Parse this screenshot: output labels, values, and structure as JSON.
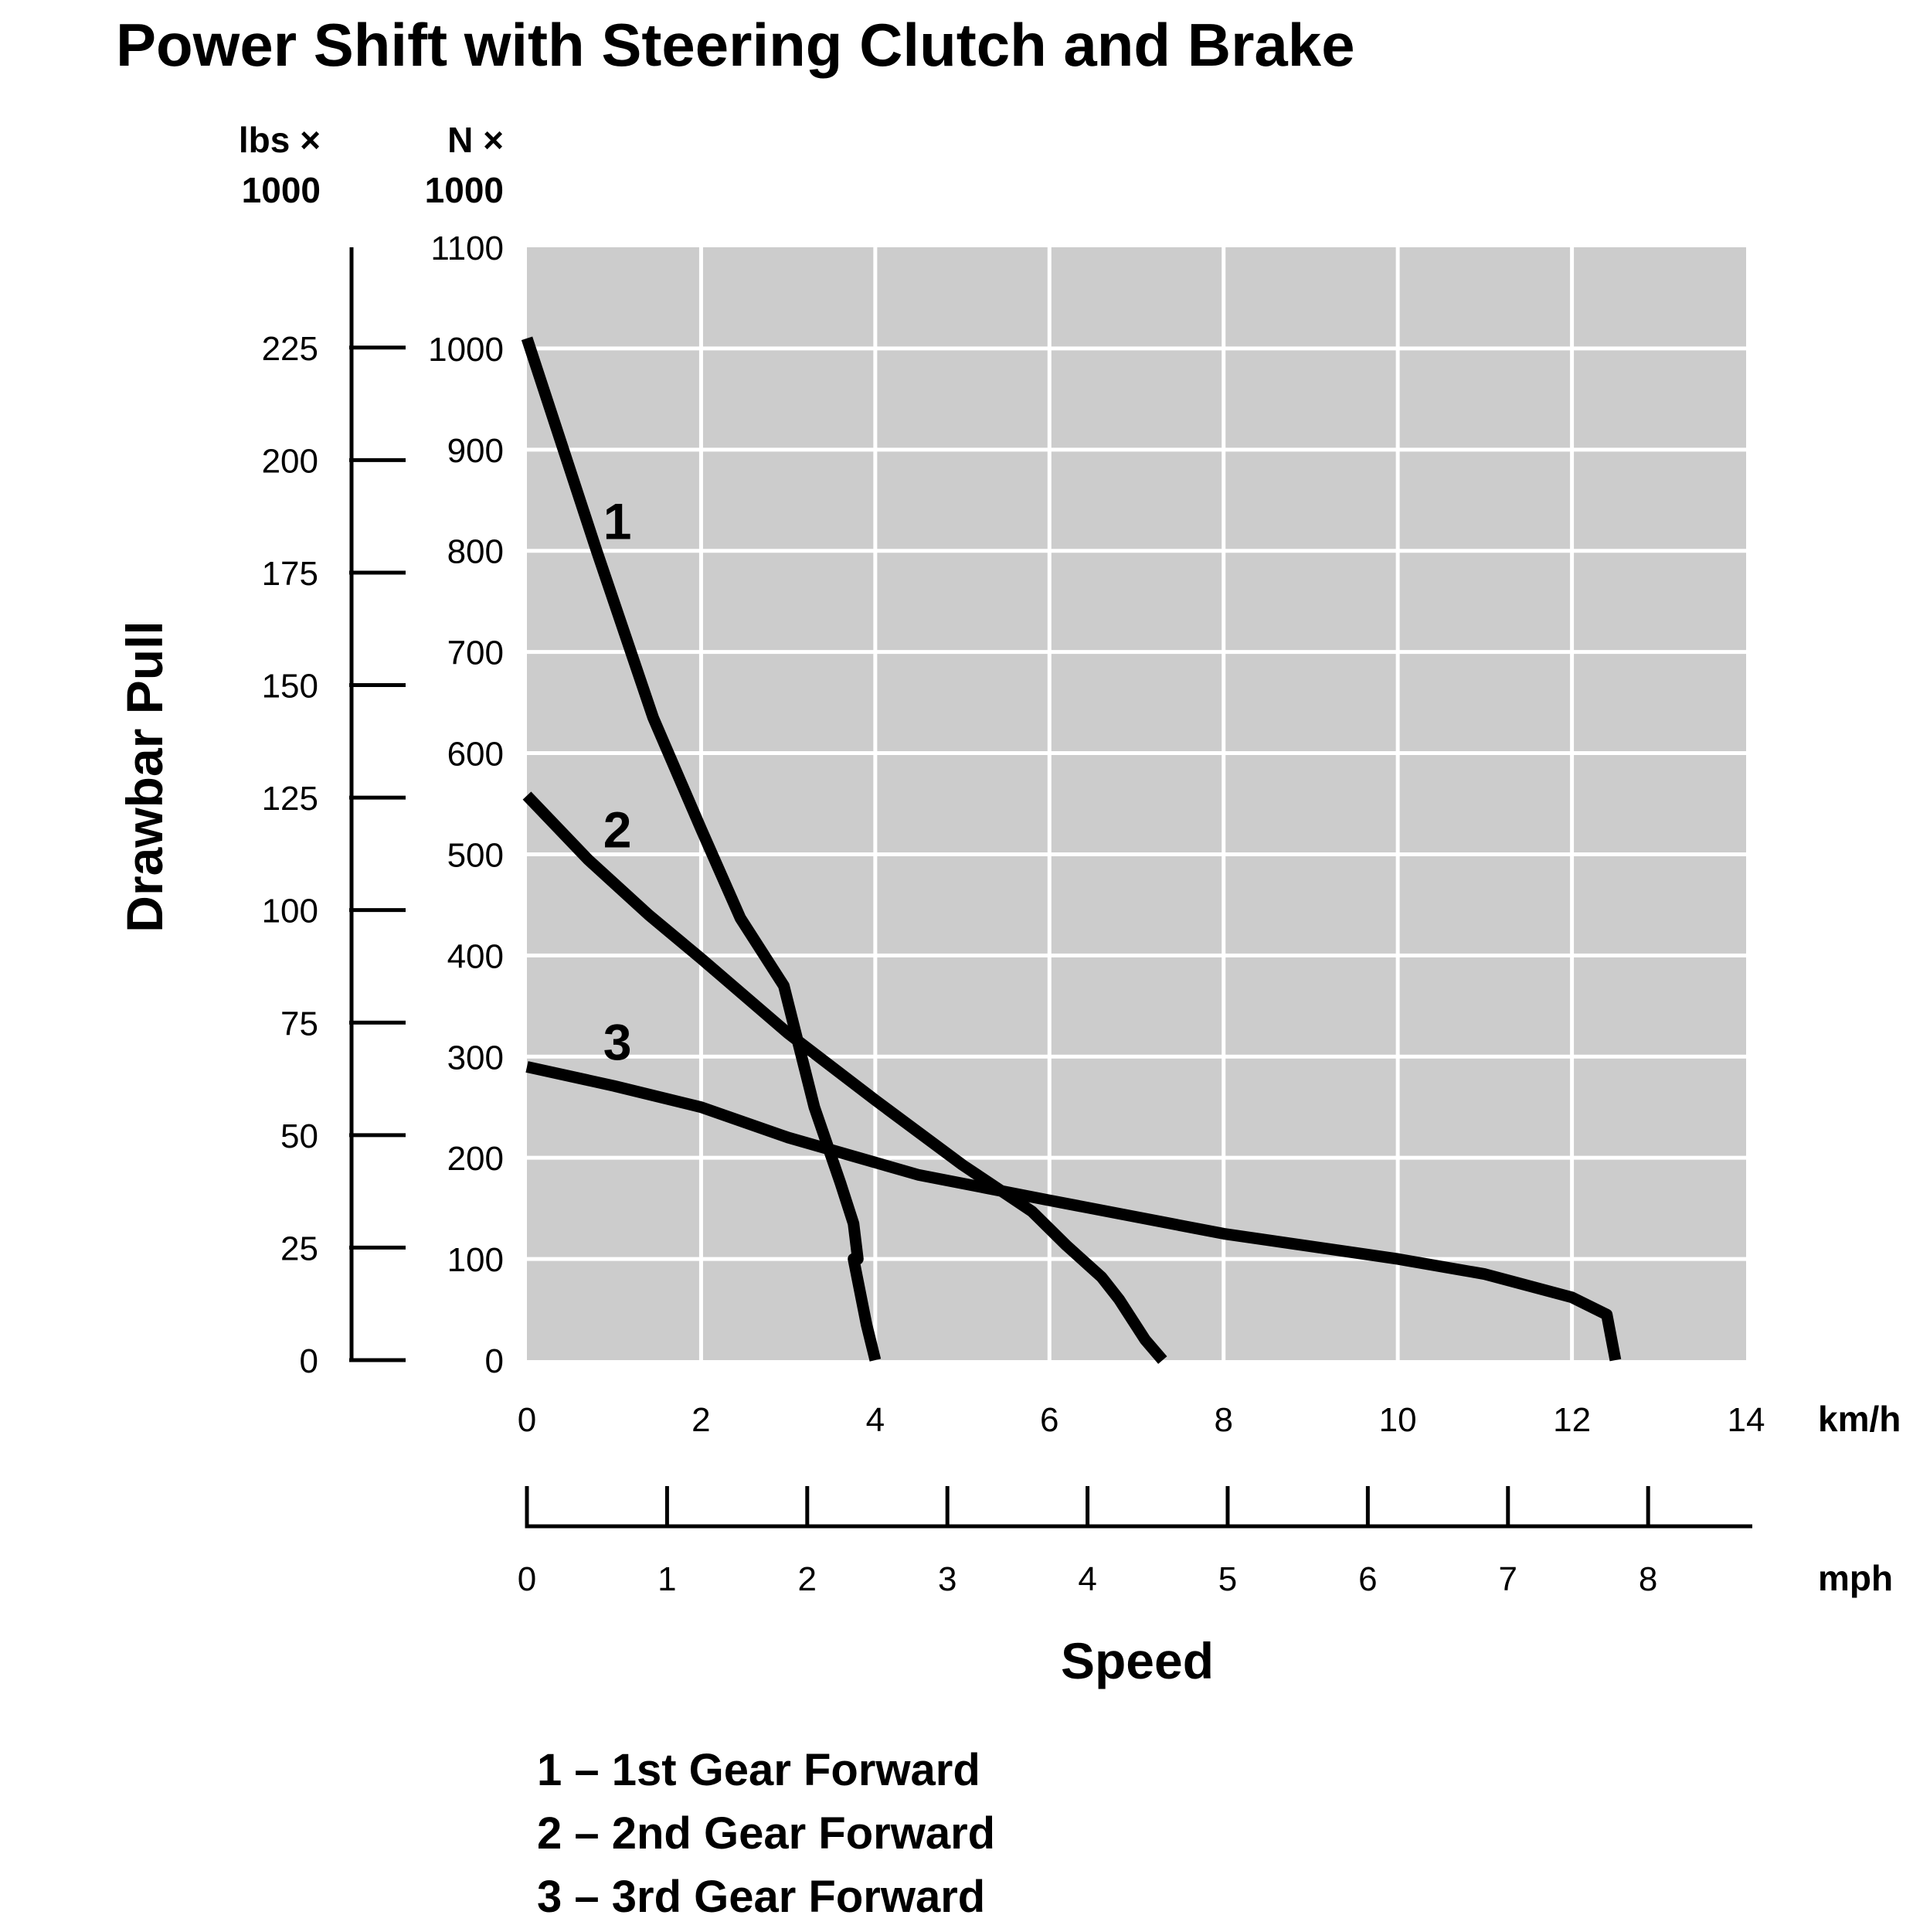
{
  "chart_data": {
    "type": "line",
    "title": "Power Shift with Steering Clutch and Brake",
    "ylabel": "Drawbar Pull",
    "xlabel": "Speed",
    "x_unit_primary": "km/h",
    "x_unit_secondary": "mph",
    "y_unit_primary": [
      "N ×",
      "1000"
    ],
    "y_unit_secondary": [
      "lbs ×",
      "1000"
    ],
    "xlim": [
      0,
      14
    ],
    "ylim": [
      0,
      1100
    ],
    "grid": true,
    "background": "#cccccc",
    "line_color": "#000000",
    "x_ticks_kmh": [
      0,
      2,
      4,
      6,
      8,
      10,
      12,
      14
    ],
    "x_ticks_mph": [
      0,
      1,
      2,
      3,
      4,
      5,
      6,
      7,
      8
    ],
    "y_ticks_N": [
      0,
      100,
      200,
      300,
      400,
      500,
      600,
      700,
      800,
      900,
      1000,
      1100
    ],
    "y_ticks_lbs": [
      0,
      25,
      50,
      75,
      100,
      125,
      150,
      175,
      200,
      225
    ],
    "series": [
      {
        "name": "1",
        "label_at": [
          0.95,
          830
        ],
        "x": [
          0,
          0.8,
          1.45,
          2.0,
          2.45,
          2.95,
          3.3,
          3.6,
          3.75,
          3.8,
          3.75,
          3.9,
          4.0
        ],
        "y": [
          1010,
          800,
          635,
          525,
          437,
          370,
          250,
          175,
          135,
          100,
          100,
          35,
          0
        ]
      },
      {
        "name": "2",
        "label_at": [
          0.95,
          525
        ],
        "x": [
          0,
          0.7,
          1.4,
          2.0,
          3.0,
          4.0,
          5.0,
          5.8,
          6.2,
          6.6,
          6.8,
          7.1,
          7.3
        ],
        "y": [
          558,
          495,
          440,
          397,
          323,
          257,
          193,
          147,
          113,
          82,
          60,
          20,
          0
        ]
      },
      {
        "name": "3",
        "label_at": [
          0.95,
          315
        ],
        "x": [
          0,
          1.0,
          2.0,
          3.0,
          4.5,
          6.0,
          8.0,
          10.0,
          11.0,
          12.0,
          12.4,
          12.5
        ],
        "y": [
          290,
          271,
          250,
          220,
          183,
          158,
          125,
          100,
          85,
          62,
          45,
          0
        ]
      }
    ]
  },
  "legend": [
    "1 – 1st Gear Forward",
    "2 – 2nd Gear Forward",
    "3 – 3rd Gear Forward"
  ]
}
